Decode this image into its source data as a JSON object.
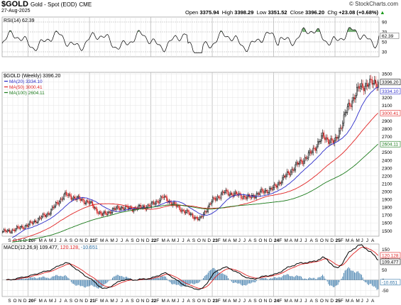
{
  "header": {
    "symbol": "$GOLD",
    "name": "Gold - Spot (EOD)",
    "exchange": "CME",
    "date": "27-Aug-2025",
    "open_label": "Open",
    "open": "3375.94",
    "high_label": "High",
    "high": "3398.29",
    "low_label": "Low",
    "low": "3351.52",
    "close_label": "Close",
    "close": "3396.20",
    "chg_label": "Chg",
    "chg": "+23.08 (+0.68%)",
    "brand": "© StockCharts.com",
    "up_arrow_color": "#1a9a1a"
  },
  "colors": {
    "up_candle": "#ffffff",
    "down_candle": "#d62828",
    "ma20": "#2b2bc9",
    "ma50": "#e02424",
    "ma100": "#1a7a1a",
    "rsi": "#000000",
    "rsi_fill": "#5aa05a",
    "macd": "#000000",
    "signal": "#e02424",
    "histogram": "#2a6fa3"
  },
  "chart_data": [
    {
      "type": "line",
      "title": "RSI(14) 62.39",
      "series": [
        {
          "name": "RSI(14)",
          "last": 62.39
        }
      ],
      "ylim": [
        20,
        100
      ],
      "ticks": [
        90,
        70,
        50,
        30
      ],
      "last_label": "62.39"
    },
    {
      "type": "candlestick",
      "title": "$GOLD (Weekly) 3396.20",
      "legend": [
        "MA(20) 3334.10",
        "MA(50) 3000.41",
        "MA(100) 2604.11"
      ],
      "ylim": [
        1430,
        3520
      ],
      "y_ticks": [
        3500,
        3400,
        3300,
        3200,
        3100,
        3000,
        2900,
        2800,
        2700,
        2600,
        2500,
        2400,
        2300,
        2200,
        2100,
        2000,
        1900,
        1800,
        1700,
        1600,
        1500
      ],
      "x": [
        2019.67,
        2020.0,
        2020.33,
        2020.6,
        2021.0,
        2021.2,
        2021.5,
        2021.7,
        2022.0,
        2022.2,
        2022.5,
        2022.8,
        2023.0,
        2023.2,
        2023.4,
        2023.6,
        2023.8,
        2024.0,
        2024.2,
        2024.4,
        2024.6,
        2024.8,
        2025.0,
        2025.2,
        2025.4,
        2025.65
      ],
      "close": [
        1490,
        1570,
        1720,
        1960,
        1860,
        1700,
        1800,
        1780,
        1820,
        1930,
        1770,
        1640,
        1880,
        1990,
        1960,
        1920,
        1990,
        2040,
        2200,
        2350,
        2480,
        2700,
        2620,
        3050,
        3330,
        3396
      ],
      "series": [
        {
          "name": "MA(20)",
          "last": 3334.1
        },
        {
          "name": "MA(50)",
          "last": 3000.41
        },
        {
          "name": "MA(100)",
          "last": 2604.11
        }
      ],
      "price_labels": [
        "3396.20",
        "3334.10",
        "3000.41",
        "2604.11"
      ],
      "x_ticks": [
        "S",
        "O",
        "N",
        "D",
        "20",
        "F",
        "M",
        "A",
        "M",
        "J",
        "J",
        "A",
        "S",
        "O",
        "N",
        "D",
        "21",
        "F",
        "M",
        "A",
        "M",
        "J",
        "J",
        "A",
        "S",
        "O",
        "N",
        "D",
        "22",
        "F",
        "M",
        "A",
        "M",
        "J",
        "J",
        "A",
        "S",
        "O",
        "N",
        "D",
        "23",
        "F",
        "M",
        "A",
        "M",
        "J",
        "J",
        "A",
        "S",
        "O",
        "N",
        "D",
        "24",
        "F",
        "M",
        "A",
        "M",
        "J",
        "J",
        "A",
        "S",
        "O",
        "N",
        "D",
        "25",
        "F",
        "M",
        "A",
        "M",
        "J",
        "J",
        "A"
      ]
    },
    {
      "type": "line",
      "title": "MACD(12,26,9) 109.477, 120.128, -10.651",
      "title_parts": [
        "MACD(12,26,9)",
        "109.477,",
        "120.128,",
        "-10.651"
      ],
      "series": [
        {
          "name": "MACD",
          "last": 109.477
        },
        {
          "name": "Signal",
          "last": 120.128
        },
        {
          "name": "Histogram",
          "last": -10.651
        }
      ],
      "ylim": [
        -80,
        175
      ],
      "y_ticks": [
        150,
        100,
        50,
        0,
        -50
      ],
      "last_labels": [
        "120.128",
        "109.477",
        "-10.651"
      ],
      "x_ticks": [
        "S",
        "O",
        "N",
        "D",
        "20",
        "F",
        "M",
        "A",
        "M",
        "J",
        "J",
        "A",
        "S",
        "O",
        "N",
        "D",
        "21",
        "F",
        "M",
        "A",
        "M",
        "J",
        "J",
        "A",
        "S",
        "O",
        "N",
        "D",
        "22",
        "F",
        "M",
        "A",
        "M",
        "J",
        "J",
        "A",
        "S",
        "O",
        "N",
        "D",
        "23",
        "F",
        "M",
        "A",
        "M",
        "J",
        "J",
        "A",
        "S",
        "O",
        "N",
        "D",
        "24",
        "F",
        "M",
        "A",
        "M",
        "J",
        "J",
        "A",
        "S",
        "O",
        "N",
        "D",
        "25",
        "F",
        "M",
        "A",
        "M",
        "J",
        "J",
        "A"
      ]
    }
  ]
}
